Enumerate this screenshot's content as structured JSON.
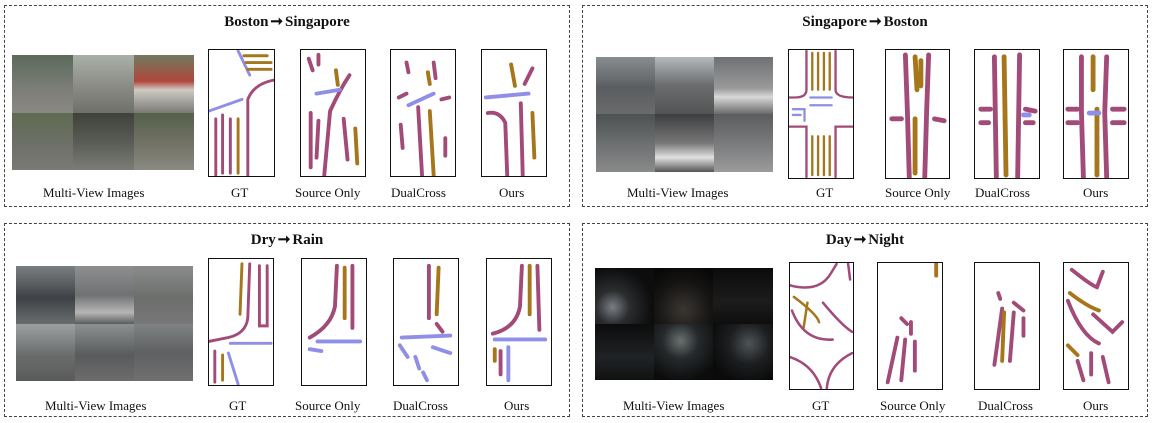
{
  "colors": {
    "divider": "#a24a78",
    "ped_crossing": "#8f8fe8",
    "boundary": "#a6761d"
  },
  "panels": [
    {
      "title_left": "Boston",
      "arrow": "➞",
      "title_right": "Singapore",
      "captions": [
        "Multi-View Images",
        "GT",
        "Source Only",
        "DualCross",
        "Ours"
      ]
    },
    {
      "title_left": "Singapore",
      "arrow": "➞",
      "title_right": "Boston",
      "captions": [
        "Multi-View Images",
        "GT",
        "Source Only",
        "DualCross",
        "Ours"
      ]
    },
    {
      "title_left": "Dry",
      "arrow": "➞",
      "title_right": "Rain",
      "captions": [
        "Multi-View Images",
        "GT",
        "Source Only",
        "DualCross",
        "Ours"
      ]
    },
    {
      "title_left": "Day",
      "arrow": "➞",
      "title_right": "Night",
      "captions": [
        "Multi-View Images",
        "GT",
        "Source Only",
        "DualCross",
        "Ours"
      ]
    }
  ]
}
